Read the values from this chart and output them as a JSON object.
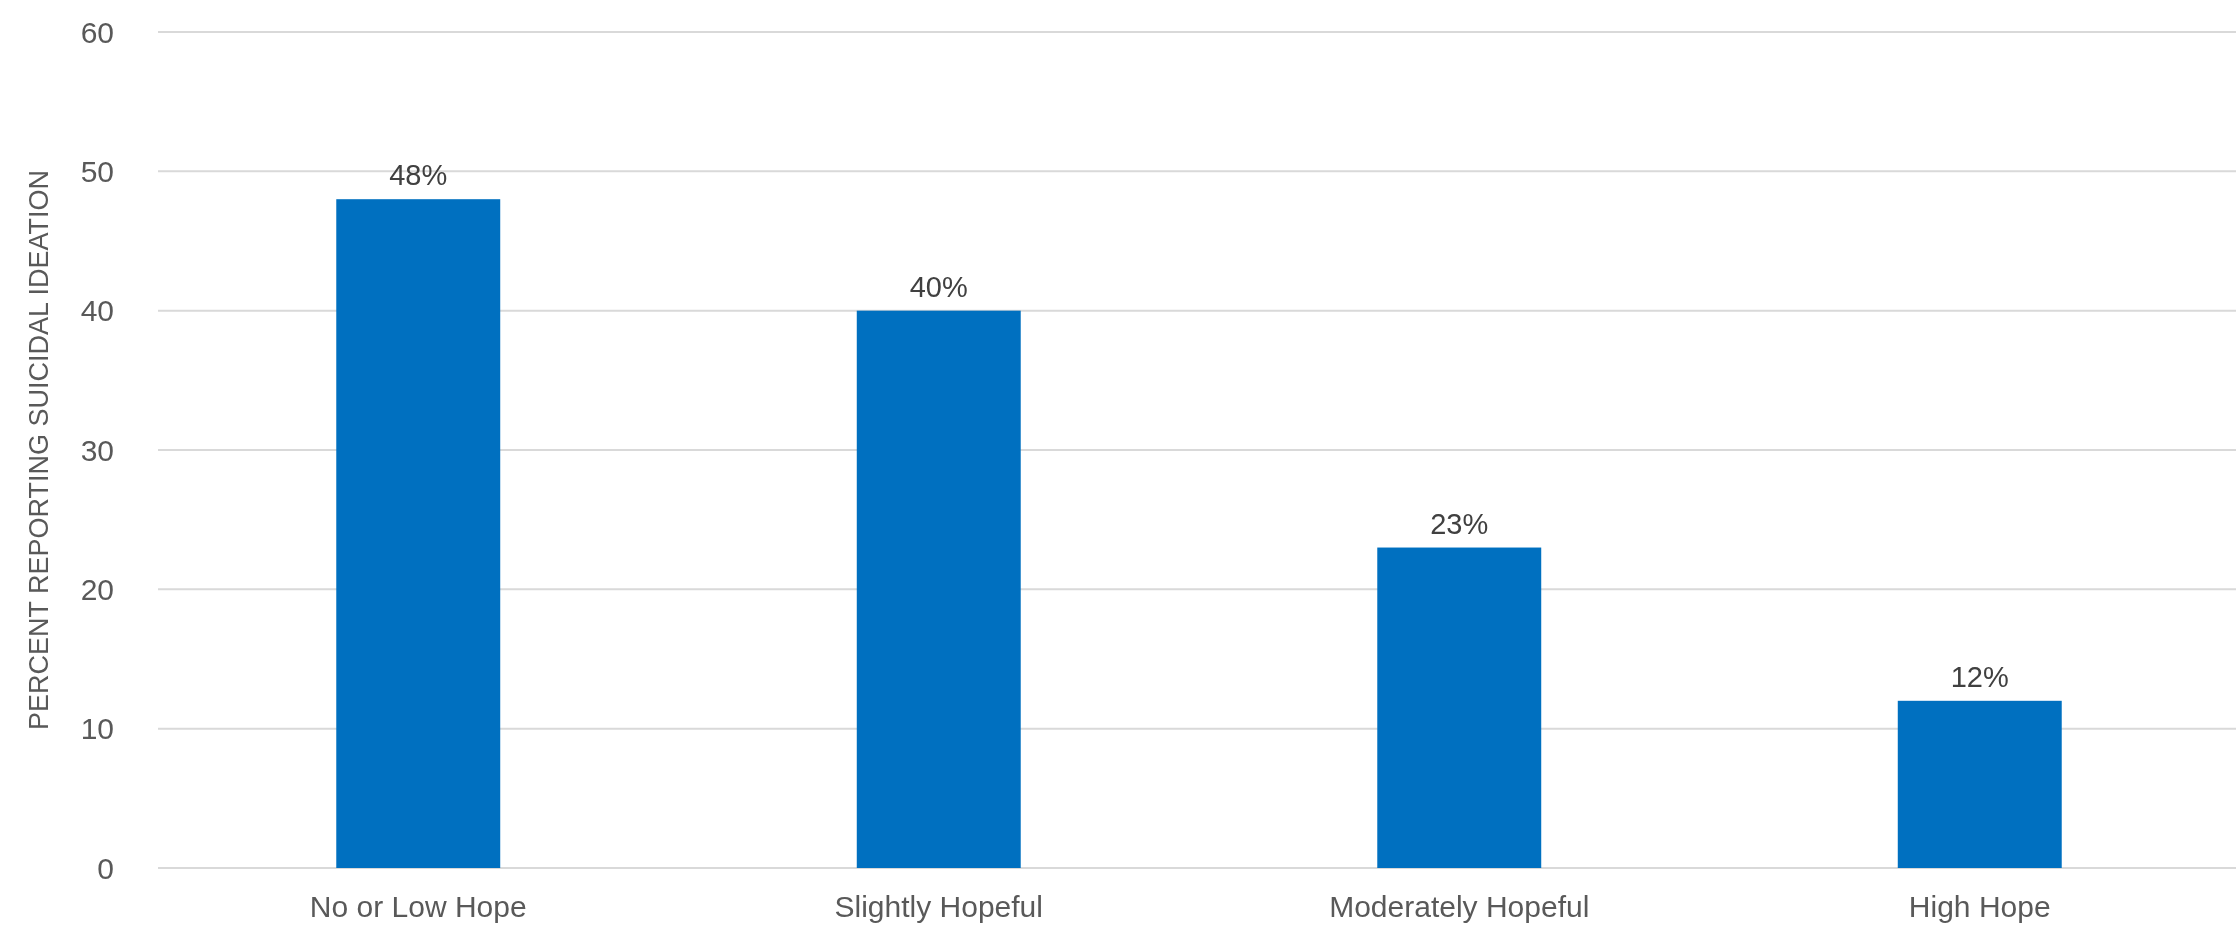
{
  "chart_data": {
    "type": "bar",
    "ylabel": "PERCENT REPORTING SUICIDAL IDEATION",
    "categories": [
      "No or Low Hope",
      "Slightly Hopeful",
      "Moderately Hopeful",
      "High Hope"
    ],
    "values": [
      48,
      40,
      23,
      12
    ],
    "value_labels": [
      "48%",
      "40%",
      "23%",
      "12%"
    ],
    "color": "#0070c0",
    "ylim": [
      0,
      60
    ],
    "yticks": [
      0,
      10,
      20,
      30,
      40,
      50,
      60
    ],
    "grid": "y"
  }
}
